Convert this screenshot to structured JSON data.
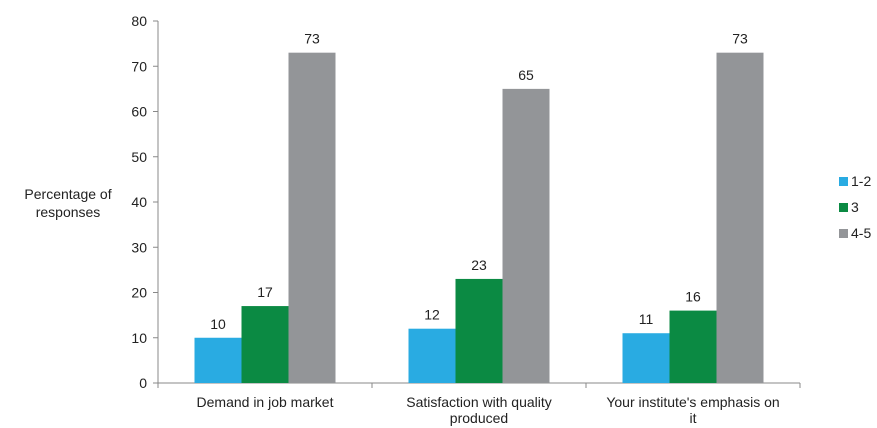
{
  "chart_data": {
    "type": "bar",
    "ylabel": "Percentage of responses",
    "ylim": [
      0,
      80
    ],
    "yticks": [
      0,
      10,
      20,
      30,
      40,
      50,
      60,
      70,
      80
    ],
    "grid": false,
    "legend_position": "right",
    "categories": [
      "Demand in job market",
      "Satisfaction with quality produced",
      "Your institute's emphasis on it"
    ],
    "category_lines": [
      [
        "Demand in job market"
      ],
      [
        "Satisfaction with quality",
        "produced"
      ],
      [
        "Your institute's emphasis on",
        "it"
      ]
    ],
    "series": [
      {
        "name": "1-2",
        "color": "#29abe2",
        "values": [
          10,
          12,
          11
        ]
      },
      {
        "name": "3",
        "color": "#0b8a43",
        "values": [
          17,
          23,
          16
        ]
      },
      {
        "name": "4-5",
        "color": "#939598",
        "values": [
          73,
          65,
          73
        ]
      }
    ]
  }
}
